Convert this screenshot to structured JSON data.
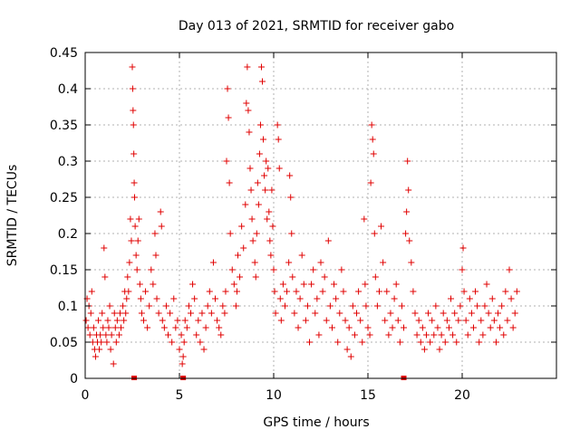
{
  "chart_data": {
    "type": "scatter",
    "title": "Day 013 of 2021, SRMTID for receiver gabo",
    "xlabel": "GPS time / hours",
    "ylabel": "SRMTID / TECUs",
    "xlim": [
      0,
      25
    ],
    "ylim": [
      0,
      0.45
    ],
    "xticks": [
      0,
      5,
      10,
      15,
      20
    ],
    "yticks": [
      0,
      0.05,
      0.1,
      0.15,
      0.2,
      0.25,
      0.3,
      0.35,
      0.4,
      0.45
    ],
    "xtick_labels": [
      "0",
      "5",
      "10",
      "15",
      "20"
    ],
    "ytick_labels": [
      "0",
      "0.05",
      "0.1",
      "0.15",
      "0.2",
      "0.25",
      "0.3",
      "0.35",
      "0.4",
      "0.45"
    ],
    "grid": true,
    "marker": "plus",
    "color": "#e00000",
    "series": [
      {
        "name": "SRMTID",
        "points": [
          [
            0.05,
            0.08
          ],
          [
            0.1,
            0.11
          ],
          [
            0.15,
            0.07
          ],
          [
            0.2,
            0.1
          ],
          [
            0.25,
            0.06
          ],
          [
            0.3,
            0.09
          ],
          [
            0.35,
            0.12
          ],
          [
            0.4,
            0.05
          ],
          [
            0.45,
            0.07
          ],
          [
            0.5,
            0.04
          ],
          [
            0.55,
            0.03
          ],
          [
            0.6,
            0.06
          ],
          [
            0.65,
            0.05
          ],
          [
            0.7,
            0.08
          ],
          [
            0.75,
            0.04
          ],
          [
            0.8,
            0.06
          ],
          [
            0.85,
            0.05
          ],
          [
            0.9,
            0.09
          ],
          [
            0.95,
            0.07
          ],
          [
            1.0,
            0.18
          ],
          [
            1.05,
            0.14
          ],
          [
            1.1,
            0.06
          ],
          [
            1.15,
            0.05
          ],
          [
            1.2,
            0.08
          ],
          [
            1.25,
            0.07
          ],
          [
            1.3,
            0.1
          ],
          [
            1.35,
            0.04
          ],
          [
            1.4,
            0.06
          ],
          [
            1.5,
            0.02
          ],
          [
            1.55,
            0.09
          ],
          [
            1.6,
            0.07
          ],
          [
            1.65,
            0.05
          ],
          [
            1.7,
            0.08
          ],
          [
            1.8,
            0.06
          ],
          [
            1.85,
            0.09
          ],
          [
            1.9,
            0.07
          ],
          [
            2.0,
            0.1
          ],
          [
            2.05,
            0.08
          ],
          [
            2.1,
            0.12
          ],
          [
            2.15,
            0.09
          ],
          [
            2.2,
            0.11
          ],
          [
            2.25,
            0.14
          ],
          [
            2.3,
            0.12
          ],
          [
            2.35,
            0.16
          ],
          [
            2.4,
            0.22
          ],
          [
            2.45,
            0.19
          ],
          [
            2.5,
            0.43
          ],
          [
            2.52,
            0.4
          ],
          [
            2.54,
            0.37
          ],
          [
            2.56,
            0.35
          ],
          [
            2.58,
            0.31
          ],
          [
            2.6,
            0.27
          ],
          [
            2.62,
            0.25
          ],
          [
            2.65,
            0.21
          ],
          [
            2.7,
            0.17
          ],
          [
            2.75,
            0.15
          ],
          [
            2.8,
            0.19
          ],
          [
            2.85,
            0.22
          ],
          [
            2.9,
            0.13
          ],
          [
            2.95,
            0.11
          ],
          [
            3.0,
            0.09
          ],
          [
            3.1,
            0.08
          ],
          [
            3.2,
            0.12
          ],
          [
            3.3,
            0.07
          ],
          [
            3.4,
            0.1
          ],
          [
            3.5,
            0.15
          ],
          [
            3.6,
            0.13
          ],
          [
            3.7,
            0.2
          ],
          [
            3.75,
            0.17
          ],
          [
            3.8,
            0.11
          ],
          [
            3.9,
            0.09
          ],
          [
            4.0,
            0.23
          ],
          [
            4.05,
            0.21
          ],
          [
            4.1,
            0.08
          ],
          [
            4.2,
            0.07
          ],
          [
            4.3,
            0.1
          ],
          [
            4.4,
            0.06
          ],
          [
            4.5,
            0.09
          ],
          [
            4.6,
            0.05
          ],
          [
            4.7,
            0.11
          ],
          [
            4.8,
            0.07
          ],
          [
            4.9,
            0.08
          ],
          [
            5.0,
            0.04
          ],
          [
            5.1,
            0.06
          ],
          [
            5.15,
            0.02
          ],
          [
            5.2,
            0.03
          ],
          [
            5.25,
            0.05
          ],
          [
            5.3,
            0.08
          ],
          [
            5.4,
            0.07
          ],
          [
            5.5,
            0.1
          ],
          [
            5.6,
            0.09
          ],
          [
            5.7,
            0.13
          ],
          [
            5.8,
            0.11
          ],
          [
            5.9,
            0.06
          ],
          [
            6.0,
            0.08
          ],
          [
            6.1,
            0.05
          ],
          [
            6.2,
            0.09
          ],
          [
            6.3,
            0.04
          ],
          [
            6.4,
            0.07
          ],
          [
            6.5,
            0.1
          ],
          [
            6.6,
            0.12
          ],
          [
            6.7,
            0.09
          ],
          [
            6.8,
            0.16
          ],
          [
            6.9,
            0.11
          ],
          [
            7.0,
            0.08
          ],
          [
            7.1,
            0.07
          ],
          [
            7.2,
            0.06
          ],
          [
            7.3,
            0.1
          ],
          [
            7.4,
            0.09
          ],
          [
            7.45,
            0.12
          ],
          [
            7.5,
            0.3
          ],
          [
            7.55,
            0.4
          ],
          [
            7.6,
            0.36
          ],
          [
            7.65,
            0.27
          ],
          [
            7.7,
            0.2
          ],
          [
            7.8,
            0.15
          ],
          [
            7.9,
            0.13
          ],
          [
            8.0,
            0.1
          ],
          [
            8.05,
            0.12
          ],
          [
            8.1,
            0.17
          ],
          [
            8.2,
            0.14
          ],
          [
            8.3,
            0.21
          ],
          [
            8.4,
            0.18
          ],
          [
            8.5,
            0.24
          ],
          [
            8.55,
            0.38
          ],
          [
            8.6,
            0.43
          ],
          [
            8.65,
            0.37
          ],
          [
            8.7,
            0.34
          ],
          [
            8.75,
            0.29
          ],
          [
            8.8,
            0.26
          ],
          [
            8.85,
            0.22
          ],
          [
            8.9,
            0.19
          ],
          [
            9.0,
            0.16
          ],
          [
            9.05,
            0.14
          ],
          [
            9.1,
            0.2
          ],
          [
            9.15,
            0.27
          ],
          [
            9.2,
            0.24
          ],
          [
            9.25,
            0.31
          ],
          [
            9.3,
            0.35
          ],
          [
            9.35,
            0.43
          ],
          [
            9.4,
            0.41
          ],
          [
            9.45,
            0.33
          ],
          [
            9.5,
            0.28
          ],
          [
            9.55,
            0.26
          ],
          [
            9.6,
            0.3
          ],
          [
            9.65,
            0.22
          ],
          [
            9.7,
            0.29
          ],
          [
            9.75,
            0.23
          ],
          [
            9.8,
            0.19
          ],
          [
            9.85,
            0.17
          ],
          [
            9.9,
            0.26
          ],
          [
            9.95,
            0.21
          ],
          [
            10.0,
            0.15
          ],
          [
            10.05,
            0.12
          ],
          [
            10.1,
            0.09
          ],
          [
            10.2,
            0.35
          ],
          [
            10.25,
            0.33
          ],
          [
            10.3,
            0.29
          ],
          [
            10.35,
            0.11
          ],
          [
            10.4,
            0.08
          ],
          [
            10.5,
            0.13
          ],
          [
            10.6,
            0.1
          ],
          [
            10.7,
            0.12
          ],
          [
            10.8,
            0.16
          ],
          [
            10.85,
            0.28
          ],
          [
            10.9,
            0.25
          ],
          [
            10.95,
            0.2
          ],
          [
            11.0,
            0.14
          ],
          [
            11.1,
            0.09
          ],
          [
            11.2,
            0.12
          ],
          [
            11.3,
            0.07
          ],
          [
            11.4,
            0.11
          ],
          [
            11.5,
            0.17
          ],
          [
            11.6,
            0.13
          ],
          [
            11.7,
            0.08
          ],
          [
            11.8,
            0.1
          ],
          [
            11.9,
            0.05
          ],
          [
            12.0,
            0.13
          ],
          [
            12.1,
            0.15
          ],
          [
            12.2,
            0.09
          ],
          [
            12.3,
            0.11
          ],
          [
            12.4,
            0.06
          ],
          [
            12.5,
            0.16
          ],
          [
            12.6,
            0.12
          ],
          [
            12.7,
            0.14
          ],
          [
            12.8,
            0.08
          ],
          [
            12.9,
            0.19
          ],
          [
            13.0,
            0.1
          ],
          [
            13.1,
            0.07
          ],
          [
            13.2,
            0.13
          ],
          [
            13.3,
            0.11
          ],
          [
            13.4,
            0.05
          ],
          [
            13.5,
            0.09
          ],
          [
            13.6,
            0.15
          ],
          [
            13.7,
            0.12
          ],
          [
            13.8,
            0.08
          ],
          [
            13.9,
            0.04
          ],
          [
            14.0,
            0.07
          ],
          [
            14.1,
            0.03
          ],
          [
            14.2,
            0.1
          ],
          [
            14.3,
            0.06
          ],
          [
            14.4,
            0.09
          ],
          [
            14.5,
            0.12
          ],
          [
            14.6,
            0.08
          ],
          [
            14.7,
            0.05
          ],
          [
            14.8,
            0.22
          ],
          [
            14.85,
            0.13
          ],
          [
            14.9,
            0.1
          ],
          [
            15.0,
            0.07
          ],
          [
            15.1,
            0.06
          ],
          [
            15.15,
            0.27
          ],
          [
            15.2,
            0.35
          ],
          [
            15.25,
            0.33
          ],
          [
            15.3,
            0.31
          ],
          [
            15.35,
            0.2
          ],
          [
            15.4,
            0.14
          ],
          [
            15.5,
            0.1
          ],
          [
            15.6,
            0.12
          ],
          [
            15.7,
            0.21
          ],
          [
            15.8,
            0.16
          ],
          [
            15.9,
            0.08
          ],
          [
            16.0,
            0.12
          ],
          [
            16.1,
            0.06
          ],
          [
            16.2,
            0.09
          ],
          [
            16.3,
            0.07
          ],
          [
            16.4,
            0.11
          ],
          [
            16.5,
            0.13
          ],
          [
            16.6,
            0.08
          ],
          [
            16.7,
            0.05
          ],
          [
            16.8,
            0.1
          ],
          [
            16.9,
            0.07
          ],
          [
            17.0,
            0.2
          ],
          [
            17.05,
            0.23
          ],
          [
            17.1,
            0.3
          ],
          [
            17.15,
            0.26
          ],
          [
            17.2,
            0.19
          ],
          [
            17.3,
            0.16
          ],
          [
            17.4,
            0.12
          ],
          [
            17.5,
            0.09
          ],
          [
            17.6,
            0.06
          ],
          [
            17.7,
            0.08
          ],
          [
            17.8,
            0.05
          ],
          [
            17.9,
            0.07
          ],
          [
            18.0,
            0.04
          ],
          [
            18.1,
            0.06
          ],
          [
            18.2,
            0.09
          ],
          [
            18.3,
            0.05
          ],
          [
            18.4,
            0.08
          ],
          [
            18.5,
            0.06
          ],
          [
            18.6,
            0.1
          ],
          [
            18.7,
            0.07
          ],
          [
            18.8,
            0.04
          ],
          [
            18.9,
            0.06
          ],
          [
            19.0,
            0.09
          ],
          [
            19.1,
            0.05
          ],
          [
            19.2,
            0.08
          ],
          [
            19.3,
            0.07
          ],
          [
            19.4,
            0.11
          ],
          [
            19.5,
            0.06
          ],
          [
            19.6,
            0.09
          ],
          [
            19.7,
            0.05
          ],
          [
            19.8,
            0.08
          ],
          [
            19.9,
            0.1
          ],
          [
            20.0,
            0.15
          ],
          [
            20.05,
            0.18
          ],
          [
            20.1,
            0.12
          ],
          [
            20.2,
            0.08
          ],
          [
            20.3,
            0.06
          ],
          [
            20.4,
            0.11
          ],
          [
            20.5,
            0.09
          ],
          [
            20.6,
            0.07
          ],
          [
            20.7,
            0.12
          ],
          [
            20.8,
            0.1
          ],
          [
            20.9,
            0.05
          ],
          [
            21.0,
            0.08
          ],
          [
            21.1,
            0.06
          ],
          [
            21.2,
            0.1
          ],
          [
            21.3,
            0.13
          ],
          [
            21.4,
            0.09
          ],
          [
            21.5,
            0.07
          ],
          [
            21.6,
            0.11
          ],
          [
            21.7,
            0.08
          ],
          [
            21.8,
            0.05
          ],
          [
            21.9,
            0.09
          ],
          [
            22.0,
            0.07
          ],
          [
            22.1,
            0.1
          ],
          [
            22.2,
            0.06
          ],
          [
            22.3,
            0.12
          ],
          [
            22.4,
            0.08
          ],
          [
            22.5,
            0.15
          ],
          [
            22.6,
            0.11
          ],
          [
            22.7,
            0.07
          ],
          [
            22.8,
            0.09
          ],
          [
            22.9,
            0.12
          ]
        ]
      }
    ],
    "zero_markers_x": [
      2.6,
      5.2,
      16.9
    ]
  }
}
